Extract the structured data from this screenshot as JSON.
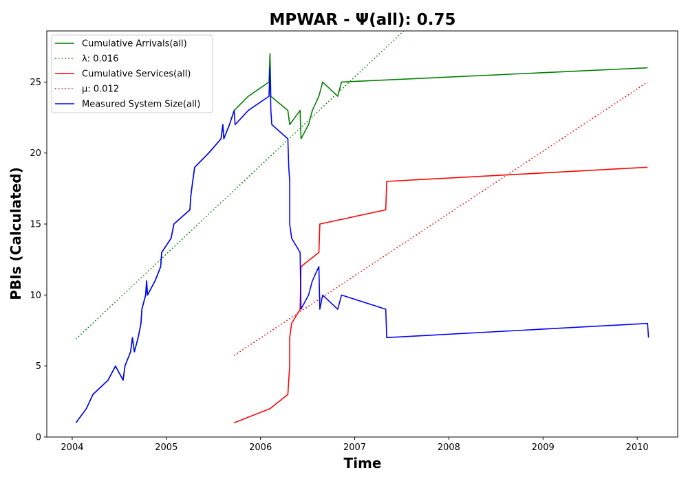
{
  "chart_data": {
    "type": "line",
    "title": "MPWAR -  Ψ(all): 0.75",
    "xlabel": "Time",
    "ylabel": "PBIs (Calculated)",
    "xlim": [
      2003.73,
      2010.43
    ],
    "ylim": [
      0,
      28.6
    ],
    "xticks": [
      2004,
      2005,
      2006,
      2007,
      2008,
      2009,
      2010
    ],
    "yticks": [
      0,
      5,
      10,
      15,
      20,
      25
    ],
    "grid": false,
    "legend_position": "upper-left",
    "series": [
      {
        "name": "Cumulative Arrivals(all)",
        "color": "#008000",
        "dash": "solid",
        "points": [
          [
            2004.04,
            1
          ],
          [
            2004.15,
            2
          ],
          [
            2004.22,
            3
          ],
          [
            2004.38,
            4
          ],
          [
            2004.46,
            5
          ],
          [
            2004.54,
            4
          ],
          [
            2004.56,
            5
          ],
          [
            2004.62,
            6
          ],
          [
            2004.64,
            7
          ],
          [
            2004.66,
            6
          ],
          [
            2004.7,
            7
          ],
          [
            2004.73,
            8
          ],
          [
            2004.74,
            9
          ],
          [
            2004.78,
            10
          ],
          [
            2004.79,
            11
          ],
          [
            2004.8,
            10
          ],
          [
            2004.88,
            11
          ],
          [
            2004.94,
            12
          ],
          [
            2004.95,
            13
          ],
          [
            2005.05,
            14
          ],
          [
            2005.08,
            15
          ],
          [
            2005.25,
            16
          ],
          [
            2005.26,
            17
          ],
          [
            2005.28,
            18
          ],
          [
            2005.3,
            19
          ],
          [
            2005.45,
            20
          ],
          [
            2005.58,
            21
          ],
          [
            2005.6,
            22
          ],
          [
            2005.61,
            21
          ],
          [
            2005.67,
            22
          ],
          [
            2005.72,
            23
          ],
          [
            2005.87,
            24
          ],
          [
            2006.09,
            25
          ],
          [
            2006.1,
            27
          ],
          [
            2006.11,
            24
          ],
          [
            2006.29,
            23
          ],
          [
            2006.31,
            22
          ],
          [
            2006.42,
            23
          ],
          [
            2006.43,
            21
          ],
          [
            2006.51,
            22
          ],
          [
            2006.55,
            23
          ],
          [
            2006.62,
            24
          ],
          [
            2006.66,
            25
          ],
          [
            2006.82,
            24
          ],
          [
            2006.86,
            25
          ],
          [
            2010.11,
            26
          ]
        ]
      },
      {
        "name": "λ: 0.016",
        "color": "#008000",
        "dash": "dotted",
        "points": [
          [
            2004.04,
            6.9
          ],
          [
            2007.52,
            28.6
          ]
        ]
      },
      {
        "name": "Cumulative Services(all)",
        "color": "#ff0000",
        "dash": "solid",
        "points": [
          [
            2005.72,
            1
          ],
          [
            2006.1,
            2
          ],
          [
            2006.29,
            3
          ],
          [
            2006.3,
            4
          ],
          [
            2006.31,
            5
          ],
          [
            2006.31,
            7
          ],
          [
            2006.33,
            8
          ],
          [
            2006.42,
            9
          ],
          [
            2006.43,
            12
          ],
          [
            2006.62,
            13
          ],
          [
            2006.63,
            15
          ],
          [
            2007.33,
            16
          ],
          [
            2007.34,
            18
          ],
          [
            2010.11,
            19
          ]
        ]
      },
      {
        "name": "μ: 0.012",
        "color": "#ff0000",
        "dash": "dotted",
        "points": [
          [
            2005.72,
            5.75
          ],
          [
            2010.11,
            25
          ]
        ]
      },
      {
        "name": "Measured System Size(all)",
        "color": "#0000ff",
        "dash": "solid",
        "points": [
          [
            2004.04,
            1
          ],
          [
            2004.15,
            2
          ],
          [
            2004.22,
            3
          ],
          [
            2004.38,
            4
          ],
          [
            2004.46,
            5
          ],
          [
            2004.54,
            4
          ],
          [
            2004.56,
            5
          ],
          [
            2004.62,
            6
          ],
          [
            2004.64,
            7
          ],
          [
            2004.66,
            6
          ],
          [
            2004.7,
            7
          ],
          [
            2004.73,
            8
          ],
          [
            2004.74,
            9
          ],
          [
            2004.78,
            10
          ],
          [
            2004.79,
            11
          ],
          [
            2004.8,
            10
          ],
          [
            2004.88,
            11
          ],
          [
            2004.94,
            12
          ],
          [
            2004.95,
            13
          ],
          [
            2005.05,
            14
          ],
          [
            2005.08,
            15
          ],
          [
            2005.25,
            16
          ],
          [
            2005.26,
            17
          ],
          [
            2005.28,
            18
          ],
          [
            2005.3,
            19
          ],
          [
            2005.45,
            20
          ],
          [
            2005.58,
            21
          ],
          [
            2005.6,
            22
          ],
          [
            2005.61,
            21
          ],
          [
            2005.67,
            22
          ],
          [
            2005.72,
            23
          ],
          [
            2005.73,
            22
          ],
          [
            2005.87,
            23
          ],
          [
            2006.09,
            24
          ],
          [
            2006.1,
            26
          ],
          [
            2006.11,
            23
          ],
          [
            2006.12,
            22
          ],
          [
            2006.29,
            21
          ],
          [
            2006.3,
            19
          ],
          [
            2006.31,
            18
          ],
          [
            2006.31,
            15
          ],
          [
            2006.33,
            14
          ],
          [
            2006.42,
            13
          ],
          [
            2006.43,
            9
          ],
          [
            2006.51,
            10
          ],
          [
            2006.55,
            11
          ],
          [
            2006.62,
            12
          ],
          [
            2006.63,
            9
          ],
          [
            2006.66,
            10
          ],
          [
            2006.82,
            9
          ],
          [
            2006.86,
            10
          ],
          [
            2007.33,
            9
          ],
          [
            2007.34,
            7
          ],
          [
            2010.11,
            8
          ],
          [
            2010.12,
            7
          ]
        ]
      }
    ]
  }
}
